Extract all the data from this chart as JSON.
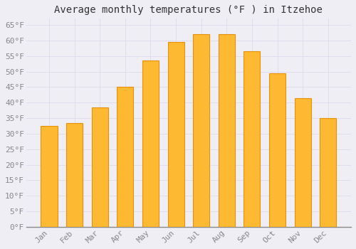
{
  "title": "Average monthly temperatures (°F ) in Itzehoe",
  "months": [
    "Jan",
    "Feb",
    "Mar",
    "Apr",
    "May",
    "Jun",
    "Jul",
    "Aug",
    "Sep",
    "Oct",
    "Nov",
    "Dec"
  ],
  "values": [
    32.5,
    33.5,
    38.5,
    45,
    53.5,
    59.5,
    62,
    62,
    56.5,
    49.5,
    41.5,
    35
  ],
  "bar_color_main": "#FDB931",
  "bar_color_edge": "#E8920A",
  "background_color": "#F0EEF5",
  "plot_bg_color": "#F0EEF5",
  "grid_color": "#DDDDEE",
  "ylim": [
    0,
    67
  ],
  "yticks": [
    0,
    5,
    10,
    15,
    20,
    25,
    30,
    35,
    40,
    45,
    50,
    55,
    60,
    65
  ],
  "title_fontsize": 10,
  "tick_fontsize": 8,
  "tick_color": "#888888",
  "axis_color": "#888888",
  "font_family": "monospace"
}
